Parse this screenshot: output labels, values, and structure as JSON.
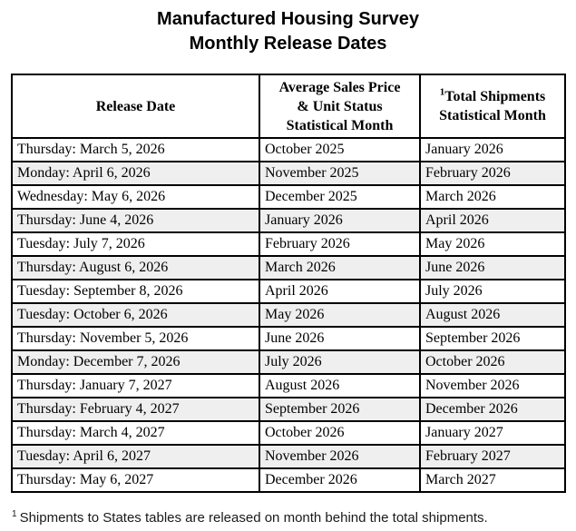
{
  "title": {
    "line1": "Manufactured Housing Survey",
    "line2": "Monthly Release Dates"
  },
  "table": {
    "headers": [
      {
        "lines": [
          "Release Date"
        ]
      },
      {
        "lines": [
          "Average Sales Price",
          "& Unit Status",
          "Statistical Month"
        ]
      },
      {
        "sup": "1",
        "lines": [
          "Total Shipments",
          "Statistical Month"
        ]
      }
    ],
    "rows": [
      [
        "Thursday: March 5, 2026",
        "October 2025",
        "January 2026"
      ],
      [
        "Monday: April 6, 2026",
        "November 2025",
        "February 2026"
      ],
      [
        "Wednesday: May 6, 2026",
        "December 2025",
        "March 2026"
      ],
      [
        "Thursday: June 4, 2026",
        "January 2026",
        "April 2026"
      ],
      [
        "Tuesday: July 7, 2026",
        "February 2026",
        "May 2026"
      ],
      [
        "Thursday: August 6, 2026",
        "March 2026",
        "June 2026"
      ],
      [
        "Tuesday: September 8, 2026",
        "April 2026",
        "July 2026"
      ],
      [
        "Tuesday: October 6, 2026",
        "May 2026",
        "August 2026"
      ],
      [
        "Thursday: November 5, 2026",
        "June 2026",
        "September 2026"
      ],
      [
        "Monday: December 7, 2026",
        "July 2026",
        "October 2026"
      ],
      [
        "Thursday: January 7, 2027",
        "August 2026",
        "November 2026"
      ],
      [
        "Thursday: February 4, 2027",
        "September 2026",
        "December 2026"
      ],
      [
        "Thursday: March 4, 2027",
        "October 2026",
        "January 2027"
      ],
      [
        "Tuesday: April 6, 2027",
        "November 2026",
        "February 2027"
      ],
      [
        "Thursday: May 6, 2027",
        "December 2026",
        "March 2027"
      ]
    ]
  },
  "footnote": {
    "sup": "1",
    "text": "Shipments to States tables are released on month behind the total shipments."
  },
  "colors": {
    "row_alt_background": "#efefef",
    "border": "#000000",
    "text": "#000000"
  }
}
